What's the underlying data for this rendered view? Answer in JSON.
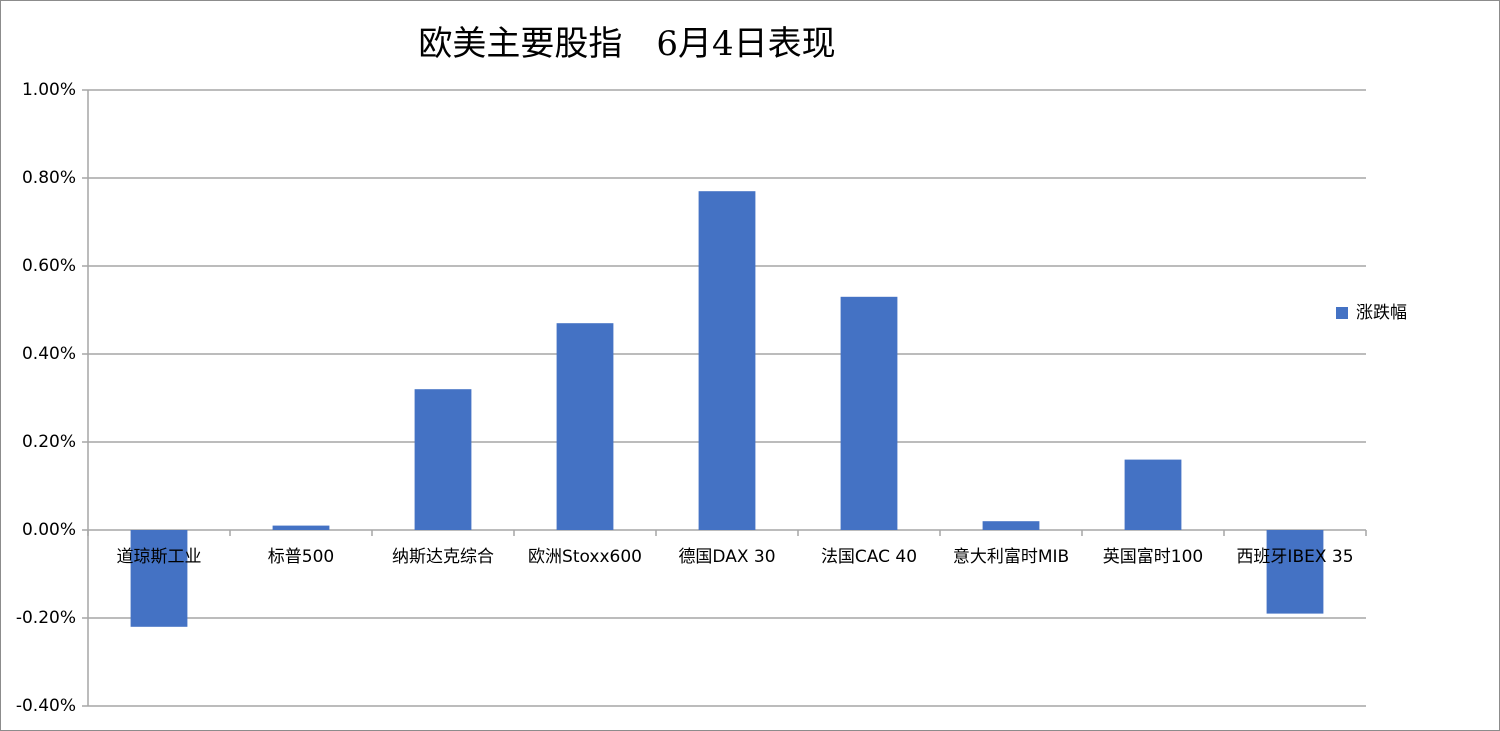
{
  "chart_data": {
    "type": "bar",
    "title": "欧美主要股指　6月4日表现",
    "categories": [
      "道琼斯工业",
      "标普500",
      "纳斯达克综合",
      "欧洲Stoxx600",
      "德国DAX 30",
      "法国CAC 40",
      "意大利富时MIB",
      "英国富时100",
      "西班牙IBEX 35"
    ],
    "series": [
      {
        "name": "涨跌幅",
        "color": "#4472c4",
        "values": [
          -0.22,
          0.01,
          0.32,
          0.47,
          0.77,
          0.53,
          0.02,
          0.16,
          -0.19
        ]
      }
    ],
    "ylim": [
      -0.4,
      1.0
    ],
    "yticks": [
      {
        "value": -0.4,
        "label": "-0.40%"
      },
      {
        "value": -0.2,
        "label": "-0.20%"
      },
      {
        "value": 0,
        "label": "0.00%"
      },
      {
        "value": 0.2,
        "label": "0.20%"
      },
      {
        "value": 0.4,
        "label": "0.40%"
      },
      {
        "value": 0.6,
        "label": "0.60%"
      },
      {
        "value": 0.8,
        "label": "0.80%"
      },
      {
        "value": 1.0,
        "label": "1.00%"
      }
    ],
    "grid": true,
    "legend": "right"
  }
}
